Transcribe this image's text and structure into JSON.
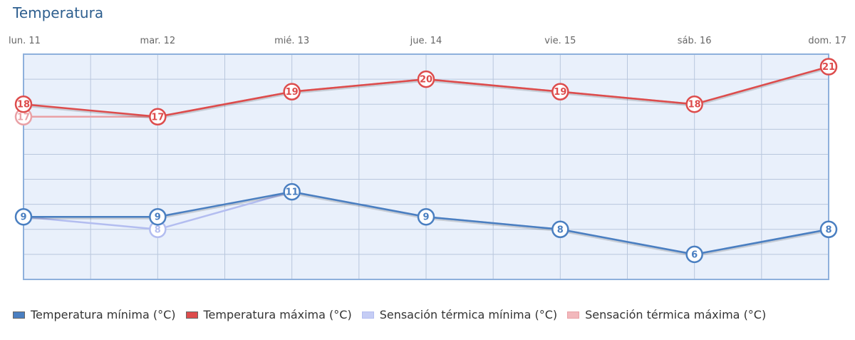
{
  "chart_data": {
    "type": "line",
    "title": "Temperatura",
    "categories": [
      "lun. 11",
      "mar. 12",
      "mié. 13",
      "jue. 14",
      "vie. 15",
      "sáb. 16",
      "dom. 17"
    ],
    "ylim": [
      4,
      22
    ],
    "grid": true,
    "legend": "bottom",
    "series": [
      {
        "name": "Sensación térmica mínima (°C)",
        "values": [
          9,
          8,
          11,
          9,
          8,
          6,
          8
        ],
        "color": "#b3bdf0",
        "fill": "#c5cdf5",
        "show_labels": false
      },
      {
        "name": "Sensación térmica máxima (°C)",
        "values": [
          17,
          17,
          19,
          20,
          19,
          18,
          21
        ],
        "color": "#e9a1a6",
        "fill": "#f2b8bc",
        "show_labels": false
      },
      {
        "name": "Temperatura mínima (°C)",
        "values": [
          9,
          9,
          11,
          9,
          8,
          6,
          8
        ],
        "color": "#4a7fc1",
        "fill": "#4a7fc1",
        "show_labels": true
      },
      {
        "name": "Temperatura máxima (°C)",
        "values": [
          18,
          17,
          19,
          20,
          19,
          18,
          21
        ],
        "color": "#dd4c4c",
        "fill": "#dd4c4c",
        "show_labels": true
      }
    ],
    "point_labels": {
      "Sensación térmica mínima (°C)": [
        "",
        "8",
        "",
        "",
        "",
        "",
        ""
      ],
      "Sensación térmica máxima (°C)": [
        "17",
        "",
        "",
        "",
        "",
        "",
        ""
      ]
    },
    "legend_order": [
      2,
      3,
      0,
      1
    ]
  }
}
